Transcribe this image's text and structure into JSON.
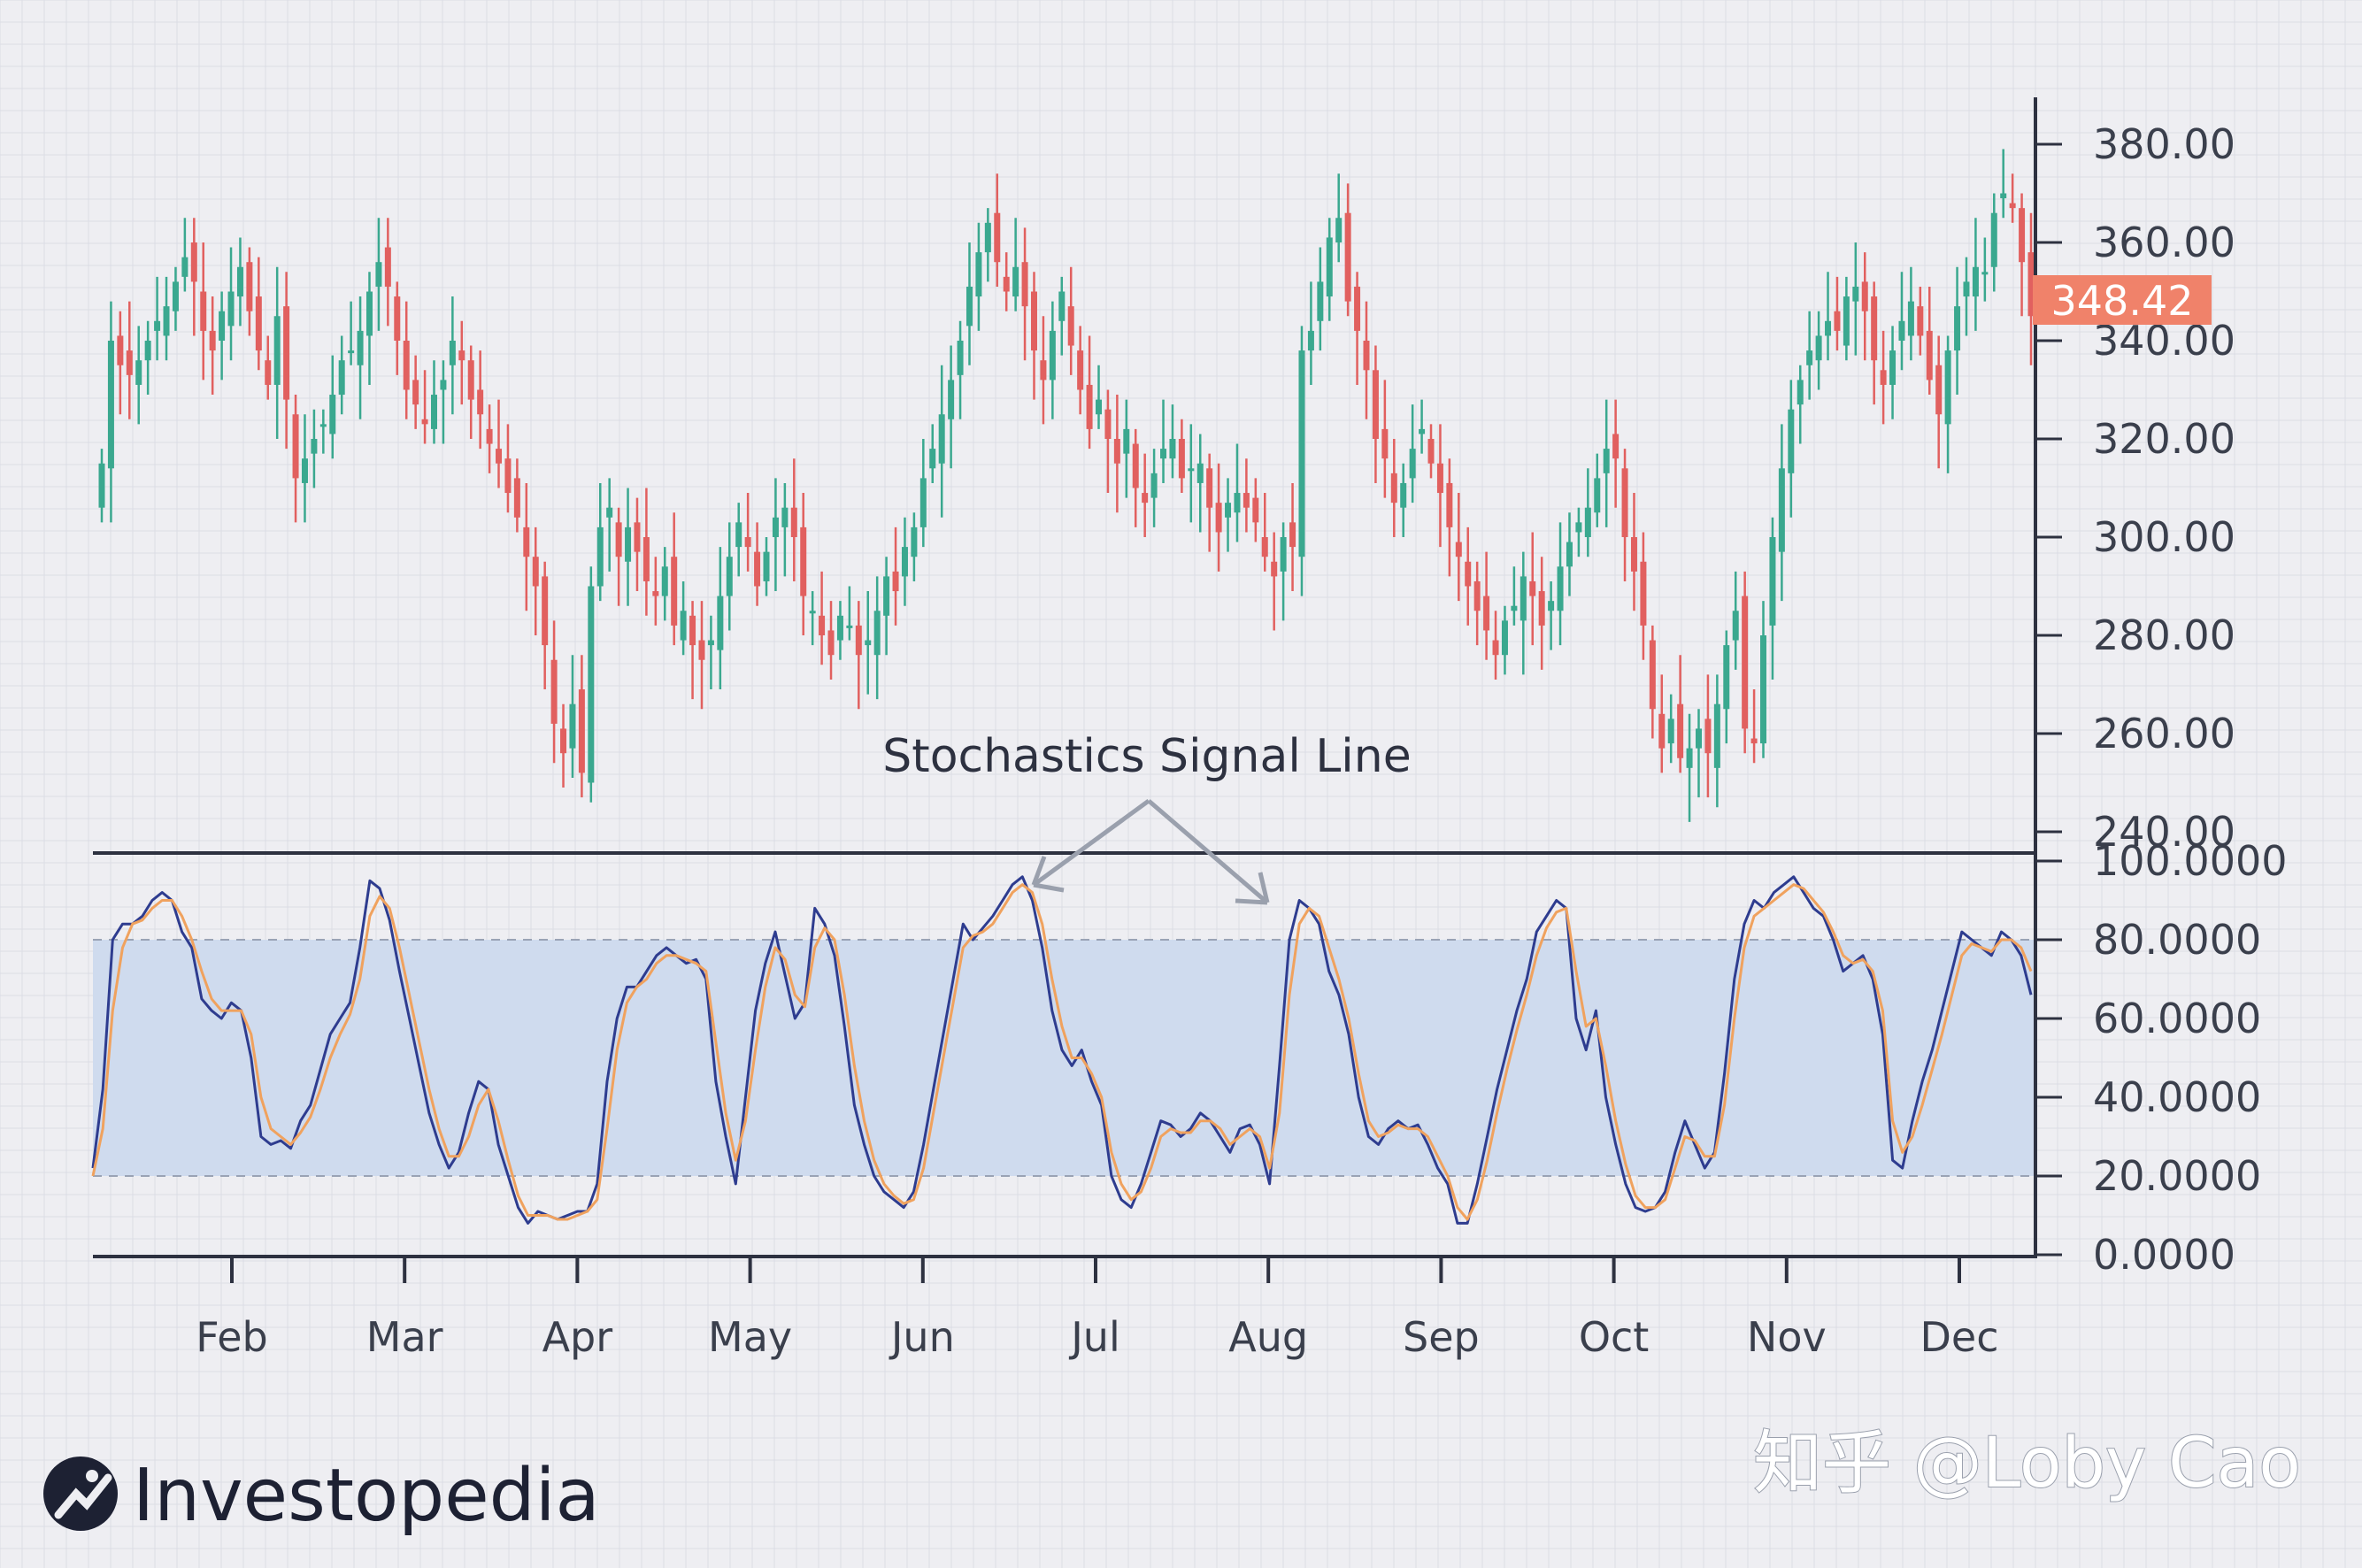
{
  "brand": {
    "name": "Investopedia",
    "icon": "investopedia-logo-icon"
  },
  "watermark": "知乎 @Loby Cao",
  "colors": {
    "background": "#eeeef2",
    "grid": "#dcdde4",
    "up": "#3aa88f",
    "down": "#e1605f",
    "k_line": "#2e3c8f",
    "d_line": "#f0a25e",
    "band": "#cfdbee",
    "price_tag": "#f0826a",
    "axis": "#2d3140",
    "annotation_arrow": "#9aa0ad"
  },
  "chart_data": [
    {
      "type": "candlestick",
      "price_tag": "348.42",
      "y_ticks": [
        "380.00",
        "360.00",
        "340.00",
        "320.00",
        "300.00",
        "280.00",
        "260.00",
        "240.00"
      ],
      "y_tick_values": [
        380,
        360,
        340,
        320,
        300,
        280,
        260,
        240
      ],
      "ylim": [
        240,
        390
      ],
      "x_months": [
        "Feb",
        "Mar",
        "Apr",
        "May",
        "Jun",
        "Jul",
        "Aug",
        "Sep",
        "Oct",
        "Nov",
        "Dec"
      ],
      "close_series": [
        315,
        340,
        335,
        333,
        336,
        340,
        344,
        347,
        352,
        357,
        352,
        342,
        338,
        346,
        350,
        355,
        346,
        338,
        331,
        345,
        328,
        312,
        316,
        320,
        323,
        329,
        336,
        338,
        342,
        350,
        356,
        351,
        340,
        330,
        327,
        323,
        329,
        332,
        340,
        336,
        328,
        325,
        319,
        315,
        309,
        304,
        296,
        290,
        278,
        262,
        256,
        266,
        252,
        290,
        302,
        306,
        296,
        302,
        297,
        291,
        288,
        294,
        282,
        285,
        278,
        275,
        279,
        288,
        296,
        303,
        298,
        290,
        297,
        304,
        306,
        300,
        288,
        285,
        280,
        276,
        284,
        282,
        276,
        279,
        285,
        292,
        289,
        298,
        302,
        312,
        318,
        325,
        332,
        340,
        351,
        358,
        364,
        356,
        350,
        355,
        347,
        338,
        332,
        342,
        350,
        339,
        330,
        322,
        328,
        320,
        315,
        322,
        310,
        307,
        313,
        318,
        320,
        312,
        314,
        315,
        306,
        301,
        307,
        309,
        306,
        303,
        296,
        292,
        300,
        298,
        338,
        342,
        352,
        361,
        365,
        348,
        342,
        334,
        320,
        316,
        307,
        311,
        318,
        322,
        315,
        309,
        302,
        296,
        290,
        285,
        281,
        276,
        283,
        286,
        292,
        288,
        282,
        287,
        294,
        299,
        303,
        306,
        312,
        318,
        316,
        300,
        293,
        282,
        265,
        257,
        263,
        255,
        257,
        261,
        256,
        266,
        278,
        285,
        261,
        258,
        280,
        300,
        314,
        326,
        332,
        338,
        341,
        344,
        342,
        349,
        351,
        346,
        336,
        331,
        338,
        344,
        348,
        341,
        332,
        325,
        338,
        347,
        352,
        355,
        354,
        366,
        370,
        367,
        356,
        345
      ],
      "note": "close_series is an approximate daily closing price reading used to draw the candles; candle open/high/low are derived visually"
    },
    {
      "type": "line",
      "title": "",
      "annotation": "Stochastics Signal Line",
      "y_ticks": [
        "100.0000",
        "80.0000",
        "60.0000",
        "40.0000",
        "20.0000",
        "0.0000"
      ],
      "y_tick_values": [
        100,
        80,
        60,
        40,
        20,
        0
      ],
      "ylim": [
        0,
        100
      ],
      "band": [
        20,
        80
      ],
      "grid": true,
      "series": [
        {
          "name": "",
          "color_key": "k_line",
          "values": [
            22,
            42,
            80,
            84,
            84,
            86,
            90,
            92,
            90,
            82,
            78,
            65,
            62,
            60,
            64,
            62,
            50,
            30,
            28,
            29,
            27,
            34,
            38,
            47,
            56,
            60,
            64,
            78,
            95,
            93,
            85,
            72,
            60,
            48,
            36,
            28,
            22,
            26,
            36,
            44,
            42,
            28,
            20,
            12,
            8,
            11,
            10,
            9,
            10,
            11,
            11,
            18,
            44,
            60,
            68,
            68,
            72,
            76,
            78,
            76,
            74,
            75,
            70,
            44,
            30,
            18,
            40,
            62,
            74,
            82,
            71,
            60,
            64,
            88,
            84,
            76,
            58,
            38,
            28,
            20,
            16,
            14,
            12,
            16,
            28,
            42,
            56,
            70,
            84,
            80,
            83,
            86,
            90,
            94,
            96,
            90,
            78,
            62,
            52,
            48,
            52,
            44,
            38,
            20,
            14,
            12,
            18,
            26,
            34,
            33,
            30,
            32,
            36,
            34,
            30,
            26,
            32,
            33,
            28,
            18,
            48,
            80,
            90,
            88,
            84,
            72,
            66,
            56,
            40,
            30,
            28,
            32,
            34,
            32,
            33,
            28,
            22,
            18,
            8,
            8,
            18,
            30,
            42,
            52,
            62,
            70,
            82,
            86,
            90,
            88,
            60,
            52,
            62,
            40,
            28,
            18,
            12,
            11,
            12,
            16,
            26,
            34,
            28,
            22,
            26,
            46,
            70,
            84,
            90,
            88,
            92,
            94,
            96,
            92,
            88,
            86,
            80,
            72,
            74,
            76,
            70,
            56,
            24,
            22,
            34,
            44,
            52,
            62,
            72,
            82,
            80,
            78,
            76,
            82,
            80,
            76,
            66
          ]
        },
        {
          "name": "",
          "color_key": "d_line",
          "values": [
            20,
            32,
            62,
            78,
            84,
            85,
            88,
            90,
            90,
            86,
            80,
            72,
            65,
            62,
            62,
            62,
            56,
            40,
            32,
            30,
            28,
            31,
            35,
            42,
            50,
            56,
            61,
            70,
            86,
            91,
            88,
            78,
            66,
            54,
            42,
            32,
            25,
            25,
            30,
            38,
            42,
            34,
            24,
            15,
            10,
            10,
            10,
            9,
            9,
            10,
            11,
            14,
            32,
            52,
            64,
            68,
            70,
            74,
            76,
            76,
            75,
            74,
            72,
            54,
            36,
            24,
            34,
            52,
            68,
            78,
            75,
            66,
            63,
            78,
            83,
            80,
            66,
            48,
            34,
            24,
            18,
            15,
            13,
            14,
            22,
            36,
            50,
            64,
            78,
            81,
            82,
            84,
            88,
            92,
            94,
            92,
            84,
            70,
            58,
            50,
            50,
            46,
            40,
            26,
            18,
            14,
            16,
            22,
            30,
            32,
            31,
            31,
            34,
            34,
            32,
            28,
            30,
            32,
            30,
            22,
            36,
            66,
            84,
            88,
            86,
            78,
            70,
            60,
            46,
            34,
            30,
            31,
            33,
            32,
            32,
            30,
            25,
            20,
            12,
            9,
            14,
            24,
            36,
            47,
            57,
            66,
            76,
            83,
            87,
            88,
            72,
            58,
            60,
            48,
            34,
            23,
            15,
            12,
            12,
            14,
            22,
            30,
            29,
            25,
            25,
            38,
            60,
            78,
            86,
            88,
            90,
            92,
            94,
            93,
            90,
            87,
            82,
            76,
            74,
            75,
            72,
            62,
            34,
            26,
            30,
            38,
            47,
            56,
            66,
            76,
            79,
            78,
            77,
            80,
            80,
            78,
            72
          ]
        }
      ]
    }
  ]
}
